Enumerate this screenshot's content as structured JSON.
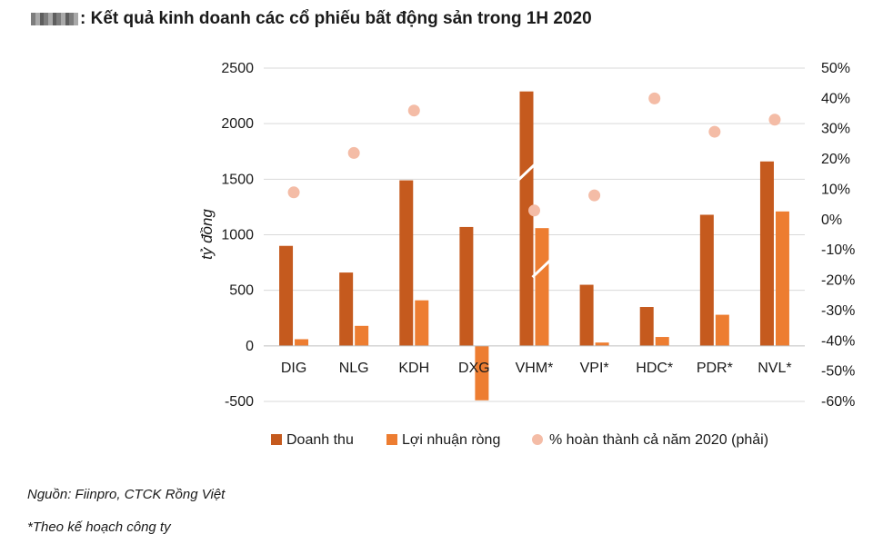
{
  "title": ": Kết quả kinh doanh các cổ phiếu bất động sản trong 1H 2020",
  "source_note": "Nguồn: Fiinpro, CTCK Rồng Việt",
  "footnote": "*Theo kế hoạch công ty",
  "colors": {
    "revenue": "#c55a1e",
    "profit": "#ed7d31",
    "completion": "#f4bca6"
  },
  "chart_data": {
    "type": "bar",
    "categories": [
      "DIG",
      "NLG",
      "KDH",
      "DXG",
      "VHM*",
      "VPI*",
      "HDC*",
      "PDR*",
      "NVL*"
    ],
    "series": [
      {
        "name": "Doanh thu",
        "axis": "left",
        "kind": "bar",
        "values": [
          900,
          660,
          1490,
          1070,
          2290,
          550,
          350,
          1180,
          1660
        ]
      },
      {
        "name": "Lợi nhuận ròng",
        "axis": "left",
        "kind": "bar",
        "values": [
          60,
          180,
          410,
          -490,
          1060,
          30,
          80,
          280,
          1210
        ]
      },
      {
        "name": "% hoàn thành cả năm 2020 (phải)",
        "axis": "right",
        "kind": "scatter",
        "values": [
          9,
          22,
          36,
          null,
          3,
          8,
          40,
          29,
          33
        ]
      }
    ],
    "broken_bars": [
      "VHM*"
    ],
    "ylabel": "tỷ đồng",
    "ylim": [
      -500,
      2500
    ],
    "yticks": [
      "2500",
      "2000",
      "1500",
      "1000",
      "500",
      "0",
      "-500"
    ],
    "y2lim": [
      -60,
      50
    ],
    "y2ticks": [
      "50%",
      "40%",
      "30%",
      "20%",
      "10%",
      "0%",
      "-10%",
      "-20%",
      "-30%",
      "-40%",
      "-50%",
      "-60%"
    ],
    "legend_position": "bottom",
    "grid": true
  }
}
